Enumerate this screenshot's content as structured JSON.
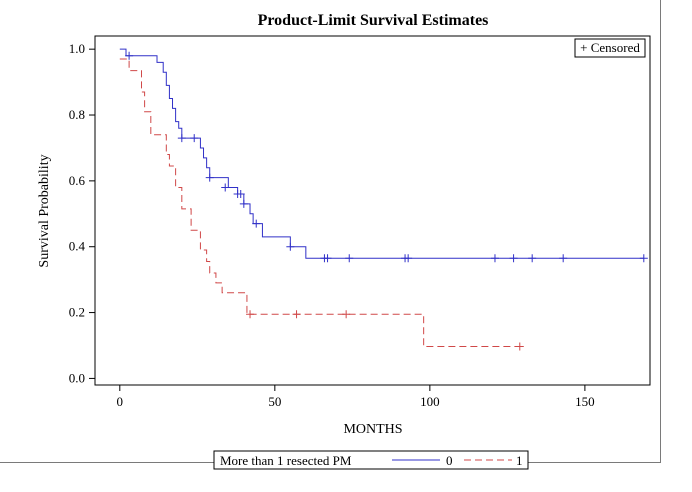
{
  "chart_data": {
    "type": "line",
    "subtype": "kaplan-meier step",
    "title": "Product-Limit Survival Estimates",
    "xlabel": "MONTHS",
    "ylabel": "Survival Probability",
    "xlim": [
      -8,
      171
    ],
    "ylim": [
      -0.02,
      1.04
    ],
    "xticks": [
      0,
      50,
      100,
      150
    ],
    "yticks": [
      0.0,
      0.2,
      0.4,
      0.6,
      0.8,
      1.0
    ],
    "xtick_labels": [
      "0",
      "50",
      "100",
      "150"
    ],
    "ytick_labels": [
      "0.0",
      "0.2",
      "0.4",
      "0.6",
      "0.8",
      "1.0"
    ],
    "grid": false,
    "censored_legend": "+ Censored",
    "legend_title": "More than 1 resected PM",
    "series": [
      {
        "name": "0",
        "color": "#3030c8",
        "dash": "solid",
        "steps": [
          [
            0,
            1.0
          ],
          [
            2,
            0.98
          ],
          [
            12,
            0.96
          ],
          [
            14,
            0.93
          ],
          [
            15,
            0.89
          ],
          [
            16,
            0.85
          ],
          [
            17,
            0.82
          ],
          [
            18,
            0.78
          ],
          [
            19,
            0.76
          ],
          [
            20,
            0.73
          ],
          [
            26,
            0.7
          ],
          [
            27,
            0.67
          ],
          [
            28,
            0.64
          ],
          [
            29,
            0.61
          ],
          [
            35,
            0.58
          ],
          [
            38,
            0.56
          ],
          [
            40,
            0.53
          ],
          [
            42,
            0.5
          ],
          [
            43,
            0.47
          ],
          [
            46,
            0.43
          ],
          [
            55,
            0.4
          ],
          [
            60,
            0.365
          ],
          [
            169,
            0.365
          ]
        ],
        "censored": [
          [
            3,
            0.98
          ],
          [
            20,
            0.73
          ],
          [
            24,
            0.73
          ],
          [
            29,
            0.61
          ],
          [
            34,
            0.58
          ],
          [
            38,
            0.56
          ],
          [
            39,
            0.56
          ],
          [
            40,
            0.53
          ],
          [
            44,
            0.47
          ],
          [
            55,
            0.4
          ],
          [
            66,
            0.365
          ],
          [
            67,
            0.365
          ],
          [
            74,
            0.365
          ],
          [
            92,
            0.365
          ],
          [
            93,
            0.365
          ],
          [
            121,
            0.365
          ],
          [
            127,
            0.365
          ],
          [
            133,
            0.365
          ],
          [
            143,
            0.365
          ],
          [
            169,
            0.365
          ]
        ]
      },
      {
        "name": "1",
        "color": "#d04848",
        "dash": "dashed",
        "steps": [
          [
            0,
            0.97
          ],
          [
            3,
            0.935
          ],
          [
            7,
            0.87
          ],
          [
            8,
            0.81
          ],
          [
            10,
            0.74
          ],
          [
            15,
            0.68
          ],
          [
            16,
            0.645
          ],
          [
            18,
            0.58
          ],
          [
            20,
            0.515
          ],
          [
            23,
            0.45
          ],
          [
            26,
            0.39
          ],
          [
            28,
            0.355
          ],
          [
            29,
            0.32
          ],
          [
            31,
            0.29
          ],
          [
            33,
            0.26
          ],
          [
            41,
            0.195
          ],
          [
            98,
            0.097
          ],
          [
            129,
            0.097
          ]
        ],
        "censored": [
          [
            42,
            0.195
          ],
          [
            57,
            0.195
          ],
          [
            73,
            0.195
          ],
          [
            129,
            0.097
          ]
        ]
      }
    ]
  }
}
